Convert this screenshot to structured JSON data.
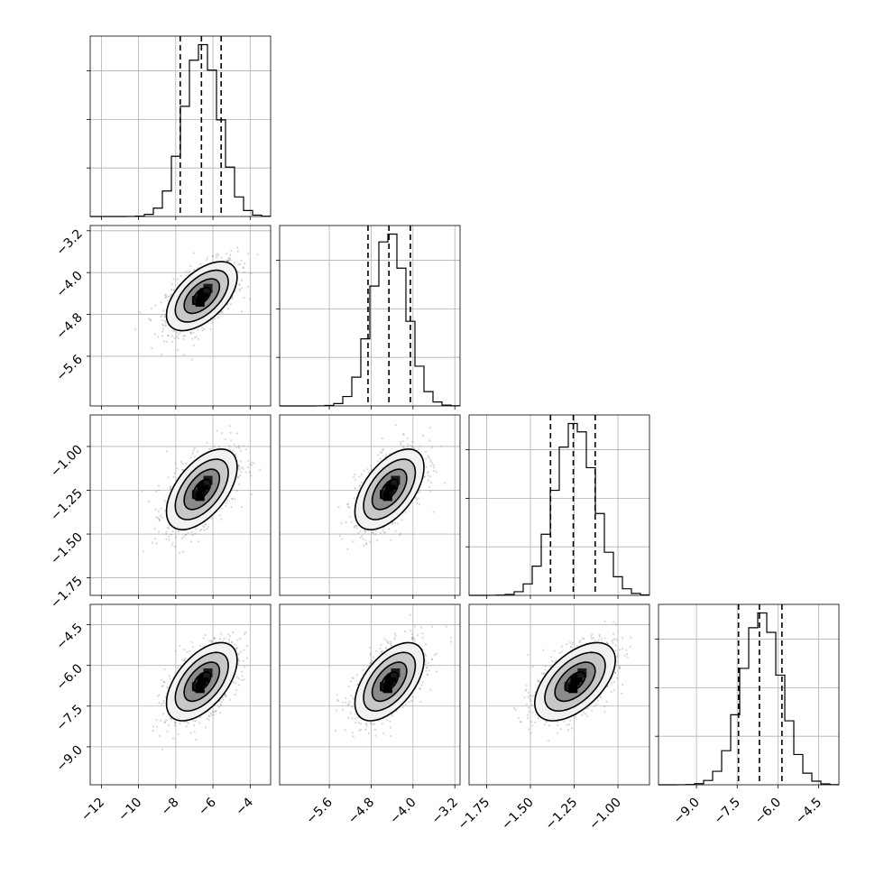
{
  "chart_data": {
    "type": "corner",
    "parameters": [
      {
        "id": "p0",
        "range": [
          -12.6,
          -2.9
        ],
        "mean": -6.6,
        "std": 0.95,
        "quantiles": [
          -7.76,
          -6.62,
          -5.56
        ],
        "ticks": [
          {
            "v": -12,
            "label": "−12"
          },
          {
            "v": -10,
            "label": "−10"
          },
          {
            "v": -8,
            "label": "−8"
          },
          {
            "v": -6,
            "label": "−6"
          },
          {
            "v": -4,
            "label": "−4"
          }
        ]
      },
      {
        "id": "p1",
        "range": [
          -6.55,
          -3.1
        ],
        "mean": -4.45,
        "std": 0.33,
        "quantiles": [
          -4.86,
          -4.46,
          -4.05
        ],
        "ticks": [
          {
            "v": -5.6,
            "label": "−5.6"
          },
          {
            "v": -4.8,
            "label": "−4.8"
          },
          {
            "v": -4.0,
            "label": "−4.0"
          },
          {
            "v": -3.2,
            "label": "−3.2"
          }
        ]
      },
      {
        "id": "p2",
        "range": [
          -1.85,
          -0.82
        ],
        "mean": -1.245,
        "std": 0.115,
        "quantiles": [
          -1.385,
          -1.255,
          -1.13
        ],
        "ticks": [
          {
            "v": -1.75,
            "label": "−1.75"
          },
          {
            "v": -1.5,
            "label": "−1.50"
          },
          {
            "v": -1.25,
            "label": "−1.25"
          },
          {
            "v": -1.0,
            "label": "−1.00"
          }
        ]
      },
      {
        "id": "p3",
        "range": [
          -10.4,
          -3.75
        ],
        "mean": -6.6,
        "std": 0.72,
        "quantiles": [
          -7.45,
          -6.68,
          -5.85
        ],
        "ticks": [
          {
            "v": -9.0,
            "label": "−9.0"
          },
          {
            "v": -7.5,
            "label": "−7.5"
          },
          {
            "v": -6.0,
            "label": "−6.0"
          },
          {
            "v": -4.5,
            "label": "−4.5"
          }
        ]
      }
    ],
    "y_axis_ticks": [
      null,
      [
        {
          "v": -3.2,
          "label": "−3.2"
        },
        {
          "v": -4.0,
          "label": "−4.0"
        },
        {
          "v": -4.8,
          "label": "−4.8"
        },
        {
          "v": -5.6,
          "label": "−5.6"
        }
      ],
      [
        {
          "v": -1.0,
          "label": "−1.00"
        },
        {
          "v": -1.25,
          "label": "−1.25"
        },
        {
          "v": -1.5,
          "label": "−1.50"
        },
        {
          "v": -1.75,
          "label": "−1.75"
        }
      ],
      [
        {
          "v": -4.5,
          "label": "−4.5"
        },
        {
          "v": -6.0,
          "label": "−6.0"
        },
        {
          "v": -7.5,
          "label": "−7.5"
        },
        {
          "v": -9.0,
          "label": "−9.0"
        }
      ]
    ],
    "correlation": 0.55,
    "histogram_bins": 20,
    "contour_levels_sigma": [
      0.5,
      1.0,
      1.5,
      2.0
    ],
    "quantile_levels": [
      0.16,
      0.5,
      0.84
    ],
    "grid": true,
    "title": "",
    "legend": "none",
    "colors": {
      "hist": "#000000",
      "contour": "#000000",
      "scatter": "#8c8c8c",
      "density": "#000000"
    }
  }
}
